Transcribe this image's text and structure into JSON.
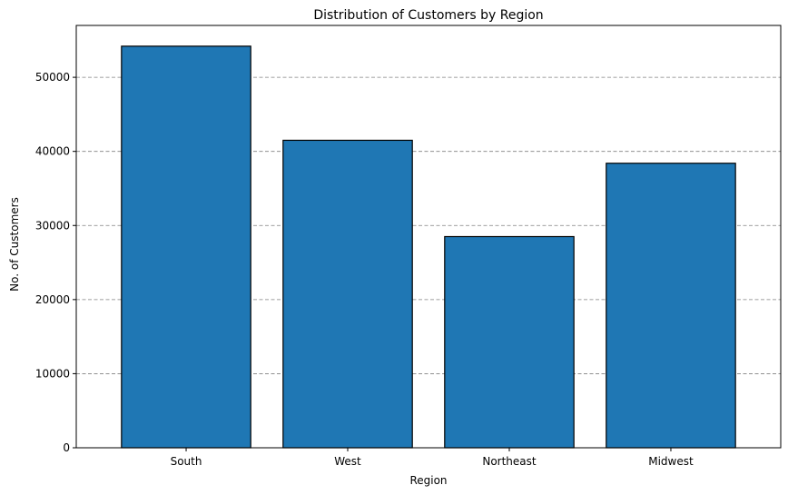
{
  "chart_data": {
    "type": "bar",
    "title": "Distribution of Customers by Region",
    "xlabel": "Region",
    "ylabel": "No. of Customers",
    "categories": [
      "South",
      "West",
      "Northeast",
      "Midwest"
    ],
    "values": [
      54200,
      41500,
      28500,
      38400
    ],
    "ylim": [
      0,
      57000
    ],
    "yticks": [
      0,
      10000,
      20000,
      30000,
      40000,
      50000
    ],
    "grid": {
      "axis": "y",
      "style": "dashed",
      "color": "#808080"
    },
    "bar_color": "#1f77b4",
    "bar_edge_color": "#000000"
  }
}
